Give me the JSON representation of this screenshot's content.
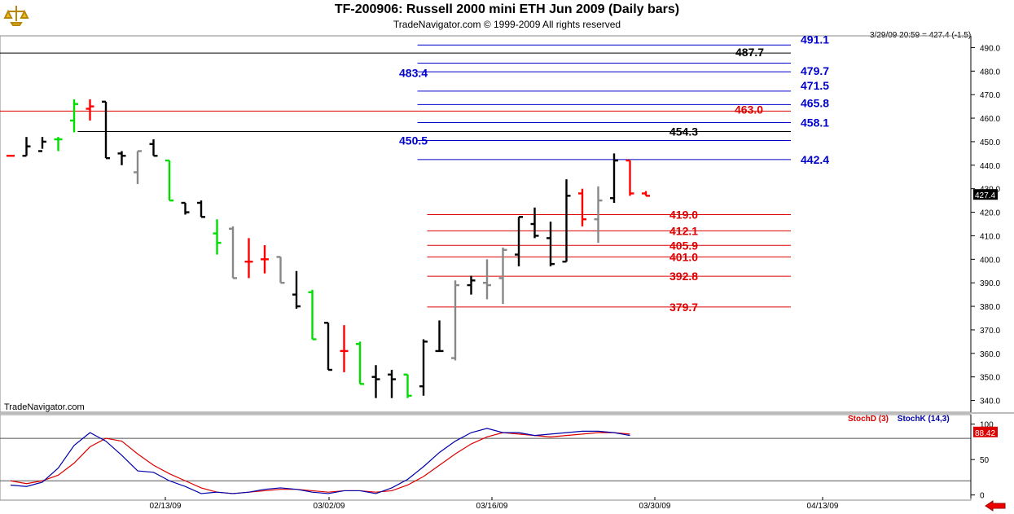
{
  "header": {
    "title": "TF-200906:  Russell 2000 mini ETH Jun 2009  (Daily bars)",
    "subtitle": "TradeNavigator.com © 1999-2009 All rights reserved",
    "timestamp": "3/29/09 20:59 = 427.4 (-1.5)",
    "watermark": "TradeNavigator.com"
  },
  "colors": {
    "black_bar": "#000000",
    "up_bar": "#00dd00",
    "down_bar": "#ff0000",
    "gray_bar": "#888888",
    "blue_level": "#0000cc",
    "red_level": "#dd0000",
    "stoch_d": "#dd0000",
    "stoch_k": "#0000aa"
  },
  "chart_data": [
    {
      "type": "ohlc",
      "title": "TF-200906:  Russell 2000 mini ETH Jun 2009  (Daily bars)",
      "ylim": [
        335,
        495
      ],
      "y_ticks": [
        "490.0",
        "480.0",
        "470.0",
        "460.0",
        "450.0",
        "440.0",
        "430.0",
        "420.0",
        "410.0",
        "400.0",
        "390.0",
        "380.0",
        "370.0",
        "360.0",
        "350.0",
        "340.0"
      ],
      "x_ticks": [
        "02/13/09",
        "03/02/09",
        "03/16/09",
        "03/30/09",
        "04/13/09"
      ],
      "last_price": "427.4",
      "bars": [
        {
          "i": 0,
          "o": 444,
          "h": 444,
          "l": 444,
          "c": 444,
          "color": "red"
        },
        {
          "i": 1,
          "o": 444,
          "h": 452,
          "l": 444,
          "c": 448,
          "color": "black"
        },
        {
          "i": 2,
          "o": 446,
          "h": 452,
          "l": 447,
          "c": 450,
          "color": "black"
        },
        {
          "i": 3,
          "o": 451,
          "h": 452,
          "l": 446,
          "c": 451,
          "color": "green"
        },
        {
          "i": 4,
          "o": 459,
          "h": 468,
          "l": 454,
          "c": 466,
          "color": "green"
        },
        {
          "i": 5,
          "o": 464,
          "h": 468,
          "l": 459,
          "c": 465,
          "color": "red"
        },
        {
          "i": 6,
          "o": 467,
          "h": 467,
          "l": 443,
          "c": 443,
          "color": "black"
        },
        {
          "i": 7,
          "o": 445,
          "h": 446,
          "l": 440,
          "c": 444,
          "color": "black"
        },
        {
          "i": 8,
          "o": 437,
          "h": 446,
          "l": 432,
          "c": 446,
          "color": "gray"
        },
        {
          "i": 9,
          "o": 449,
          "h": 451,
          "l": 444,
          "c": 444,
          "color": "black"
        },
        {
          "i": 10,
          "o": 442,
          "h": 442,
          "l": 425,
          "c": 425,
          "color": "green"
        },
        {
          "i": 11,
          "o": 424,
          "h": 424,
          "l": 419,
          "c": 420,
          "color": "black"
        },
        {
          "i": 12,
          "o": 424,
          "h": 425,
          "l": 418,
          "c": 418,
          "color": "black"
        },
        {
          "i": 13,
          "o": 411,
          "h": 417,
          "l": 402,
          "c": 407,
          "color": "green"
        },
        {
          "i": 14,
          "o": 413,
          "h": 414,
          "l": 392,
          "c": 392,
          "color": "gray"
        },
        {
          "i": 15,
          "o": 399,
          "h": 409,
          "l": 392,
          "c": 399,
          "color": "red"
        },
        {
          "i": 16,
          "o": 400,
          "h": 406,
          "l": 394,
          "c": 400,
          "color": "red"
        },
        {
          "i": 17,
          "o": 401,
          "h": 401,
          "l": 390,
          "c": 390,
          "color": "gray"
        },
        {
          "i": 18,
          "o": 385,
          "h": 395,
          "l": 379,
          "c": 380,
          "color": "black"
        },
        {
          "i": 19,
          "o": 386,
          "h": 387,
          "l": 366,
          "c": 366,
          "color": "green"
        },
        {
          "i": 20,
          "o": 373,
          "h": 373,
          "l": 353,
          "c": 353,
          "color": "black"
        },
        {
          "i": 21,
          "o": 361,
          "h": 372,
          "l": 352,
          "c": 361,
          "color": "red"
        },
        {
          "i": 22,
          "o": 364,
          "h": 365,
          "l": 347,
          "c": 347,
          "color": "green"
        },
        {
          "i": 23,
          "o": 350,
          "h": 355,
          "l": 341,
          "c": 349,
          "color": "black"
        },
        {
          "i": 24,
          "o": 351,
          "h": 353,
          "l": 341,
          "c": 349,
          "color": "black"
        },
        {
          "i": 25,
          "o": 351,
          "h": 351,
          "l": 341,
          "c": 342,
          "color": "green"
        },
        {
          "i": 26,
          "o": 346,
          "h": 366,
          "l": 342,
          "c": 365,
          "color": "black"
        },
        {
          "i": 27,
          "o": 361,
          "h": 374,
          "l": 361,
          "c": 361,
          "color": "black"
        },
        {
          "i": 28,
          "o": 358,
          "h": 391,
          "l": 357,
          "c": 389,
          "color": "gray"
        },
        {
          "i": 29,
          "o": 389,
          "h": 393,
          "l": 385,
          "c": 391,
          "color": "black"
        },
        {
          "i": 30,
          "o": 390,
          "h": 400,
          "l": 383,
          "c": 389,
          "color": "gray"
        },
        {
          "i": 31,
          "o": 392,
          "h": 405,
          "l": 381,
          "c": 404,
          "color": "gray"
        },
        {
          "i": 32,
          "o": 402,
          "h": 418,
          "l": 397,
          "c": 418,
          "color": "black"
        },
        {
          "i": 33,
          "o": 415,
          "h": 422,
          "l": 409,
          "c": 410,
          "color": "black"
        },
        {
          "i": 34,
          "o": 409,
          "h": 416,
          "l": 397,
          "c": 398,
          "color": "black"
        },
        {
          "i": 35,
          "o": 399,
          "h": 434,
          "l": 399,
          "c": 427,
          "color": "black"
        },
        {
          "i": 36,
          "o": 428,
          "h": 430,
          "l": 414,
          "c": 417,
          "color": "red"
        },
        {
          "i": 37,
          "o": 417,
          "h": 431,
          "l": 407,
          "c": 425,
          "color": "gray"
        },
        {
          "i": 38,
          "o": 426,
          "h": 445,
          "l": 424,
          "c": 442,
          "color": "black"
        },
        {
          "i": 39,
          "o": 442,
          "h": 442,
          "l": 427,
          "c": 428,
          "color": "red"
        },
        {
          "i": 40,
          "o": 428,
          "h": 429,
          "l": 427,
          "c": 427,
          "color": "red"
        }
      ],
      "levels": [
        {
          "value": "491.1",
          "y": 491.1,
          "color": "blue",
          "x_start": 0.43
        },
        {
          "value": "487.7",
          "y": 487.7,
          "color": "black",
          "x_start": 0.0
        },
        {
          "value": "483.4",
          "y": 483.4,
          "color": "blue",
          "x_start": 0.43
        },
        {
          "value": "479.7",
          "y": 479.7,
          "color": "blue",
          "x_start": 0.43
        },
        {
          "value": "471.5",
          "y": 471.5,
          "color": "blue",
          "x_start": 0.43
        },
        {
          "value": "465.8",
          "y": 465.8,
          "color": "blue",
          "x_start": 0.43
        },
        {
          "value": "463.0",
          "y": 463.0,
          "color": "red",
          "x_start": 0.0
        },
        {
          "value": "458.1",
          "y": 458.1,
          "color": "blue",
          "x_start": 0.43
        },
        {
          "value": "454.3",
          "y": 454.3,
          "color": "black",
          "x_start": 0.08
        },
        {
          "value": "450.5",
          "y": 450.5,
          "color": "blue",
          "x_start": 0.43
        },
        {
          "value": "442.4",
          "y": 442.4,
          "color": "blue",
          "x_start": 0.43
        },
        {
          "value": "419.0",
          "y": 419.0,
          "color": "red",
          "x_start": 0.44
        },
        {
          "value": "412.1",
          "y": 412.1,
          "color": "red",
          "x_start": 0.44
        },
        {
          "value": "405.9",
          "y": 405.9,
          "color": "red",
          "x_start": 0.44
        },
        {
          "value": "401.0",
          "y": 401.0,
          "color": "red",
          "x_start": 0.44
        },
        {
          "value": "392.8",
          "y": 392.8,
          "color": "red",
          "x_start": 0.44
        },
        {
          "value": "379.7",
          "y": 379.7,
          "color": "red",
          "x_start": 0.44
        }
      ]
    },
    {
      "type": "line",
      "series": [
        {
          "name": "StochD (3)",
          "color": "red",
          "values": [
            20,
            16,
            20,
            28,
            45,
            68,
            80,
            76,
            58,
            42,
            30,
            20,
            10,
            4,
            2,
            4,
            6,
            8,
            8,
            6,
            4,
            6,
            6,
            4,
            6,
            14,
            26,
            42,
            58,
            72,
            82,
            88,
            86,
            84,
            82,
            84,
            86,
            88,
            88,
            86
          ]
        },
        {
          "name": "StochK (14,3)",
          "color": "blue",
          "values": [
            14,
            12,
            18,
            38,
            70,
            88,
            76,
            56,
            34,
            32,
            20,
            12,
            2,
            4,
            2,
            4,
            8,
            10,
            8,
            4,
            2,
            6,
            6,
            2,
            10,
            22,
            40,
            60,
            76,
            88,
            94,
            88,
            88,
            84,
            86,
            88,
            90,
            90,
            88,
            84
          ]
        }
      ],
      "ylim": [
        -5,
        110
      ],
      "y_ticks": [
        "100",
        "50",
        "0"
      ],
      "hlines": [
        20,
        80
      ],
      "last_value": "88.42",
      "legend": [
        "StochD (3)",
        "StochK (14,3)"
      ]
    }
  ]
}
